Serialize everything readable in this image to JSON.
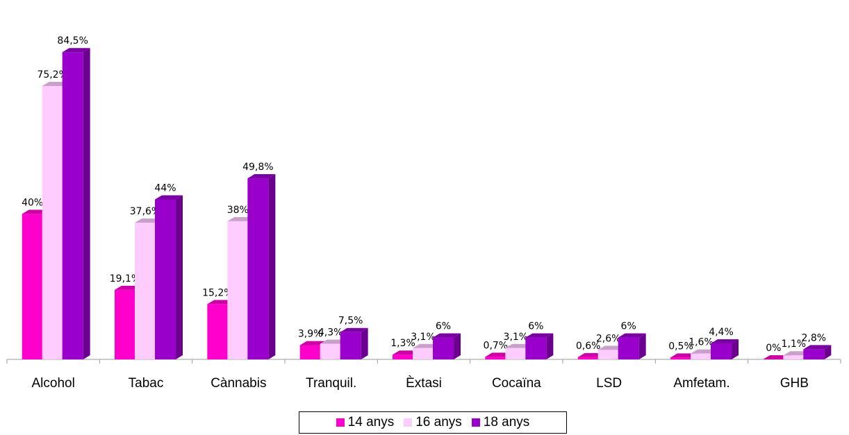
{
  "chart_data": {
    "type": "bar",
    "categories": [
      "Alcohol",
      "Tabac",
      "Cànnabis",
      "Tranquil.",
      "Èxtasi",
      "Cocaïna",
      "LSD",
      "Amfetam.",
      "GHB"
    ],
    "series": [
      {
        "name": "14 anys",
        "values": [
          40,
          19.1,
          15.2,
          3.9,
          1.3,
          0.7,
          0.6,
          0.5,
          0
        ],
        "labels": [
          "40%",
          "19,1%",
          "15,2%",
          "3,9%",
          "1,3%",
          "0,7%",
          "0,6%",
          "0,5%",
          "0%"
        ],
        "color": "#ff00cc",
        "side": "#b3008f",
        "top": "#cc00a3"
      },
      {
        "name": "16 anys",
        "values": [
          75.2,
          37.6,
          38,
          4.3,
          3.1,
          3.1,
          2.6,
          1.6,
          1.1
        ],
        "labels": [
          "75,2%",
          "37,6%",
          "38%",
          "4,3%",
          "3,1%",
          "3,1%",
          "2,6%",
          "1,6%",
          "1,1%"
        ],
        "color": "#ffccff",
        "side": "#d9a6d9",
        "top": "#c9a0c9"
      },
      {
        "name": "18 anys",
        "values": [
          84.5,
          44,
          49.8,
          7.5,
          6,
          6,
          6,
          4.4,
          2.8
        ],
        "labels": [
          "84,5%",
          "44%",
          "49,8%",
          "7,5%",
          "6%",
          "6%",
          "6%",
          "4,4%",
          "2,8%"
        ],
        "color": "#9900cc",
        "side": "#6b008f",
        "top": "#7a00a3"
      }
    ],
    "ylim": [
      0,
      90
    ],
    "legend_position": "bottom"
  }
}
